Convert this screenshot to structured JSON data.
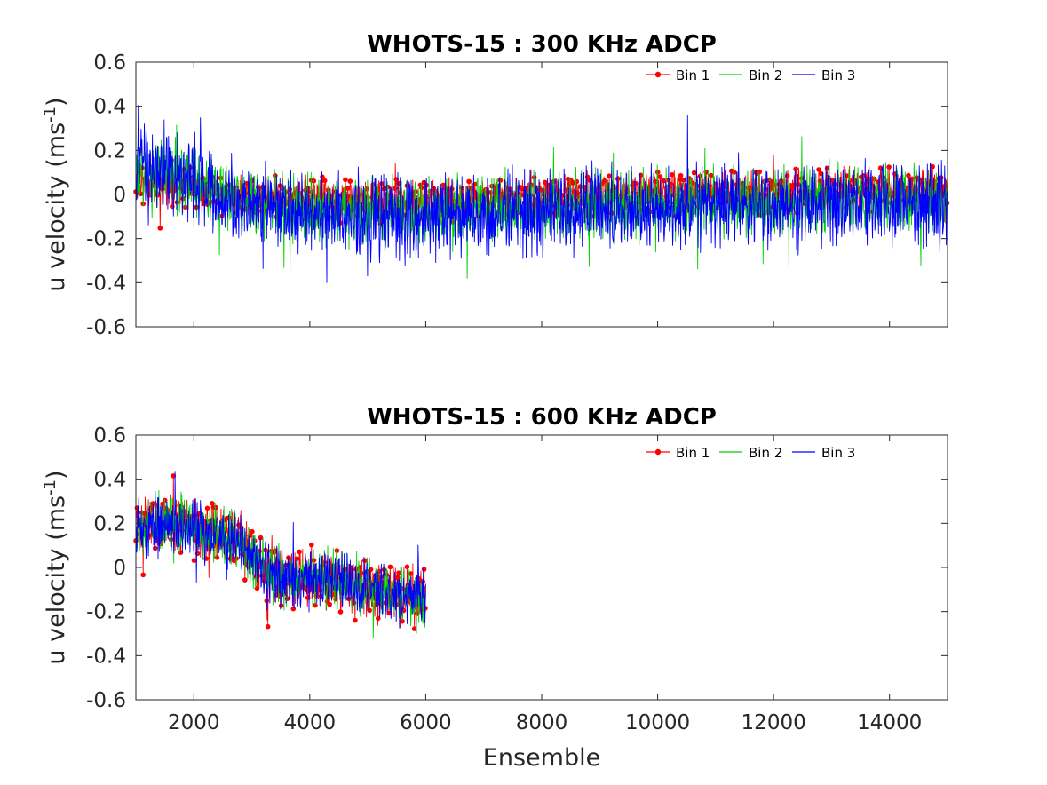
{
  "chart_data": [
    {
      "type": "line",
      "title": "WHOTS-15 : 300 KHz ADCP",
      "xlabel": "",
      "ylabel": "u velocity (ms",
      "ylabel_superscript": "-1",
      "ylabel_suffix": ")",
      "xlim": [
        1000,
        15000
      ],
      "ylim": [
        -0.6,
        0.6
      ],
      "xticks": [
        2000,
        4000,
        6000,
        8000,
        10000,
        12000,
        14000
      ],
      "xtick_labels_visible": false,
      "yticks": [
        -0.6,
        -0.4,
        -0.2,
        0,
        0.2,
        0.4,
        0.6
      ],
      "ytick_labels": [
        "-0.6",
        "-0.4",
        "-0.2",
        "0",
        "0.2",
        "0.4",
        "0.6"
      ],
      "legend": {
        "position": "top-right",
        "entries": [
          "Bin 1",
          "Bin 2",
          "Bin 3"
        ]
      },
      "series": [
        {
          "name": "Bin 1",
          "color": "#ff0000",
          "marker": "dot",
          "x": [
            1000,
            1500,
            2000,
            2500,
            3000,
            4000,
            5000,
            6000,
            7000,
            8000,
            9000,
            10000,
            11000,
            12000,
            13000,
            14000,
            15000
          ],
          "mean": [
            0.05,
            0.05,
            0.02,
            0.0,
            -0.02,
            -0.02,
            -0.03,
            -0.03,
            -0.02,
            -0.02,
            0.0,
            0.0,
            0.01,
            0.01,
            0.02,
            0.02,
            0.02
          ],
          "amplitude": 0.09
        },
        {
          "name": "Bin 2",
          "color": "#00d000",
          "marker": "none",
          "x": [
            1000,
            1500,
            2000,
            2500,
            3000,
            4000,
            5000,
            6000,
            7000,
            8000,
            9000,
            10000,
            11000,
            12000,
            13000,
            14000,
            15000
          ],
          "mean": [
            0.1,
            0.1,
            0.06,
            0.0,
            -0.04,
            -0.06,
            -0.08,
            -0.08,
            -0.06,
            -0.06,
            -0.04,
            -0.04,
            -0.03,
            -0.03,
            -0.02,
            -0.02,
            -0.03
          ],
          "amplitude": 0.14
        },
        {
          "name": "Bin 3",
          "color": "#0000ff",
          "marker": "none",
          "x": [
            1000,
            1500,
            2000,
            2500,
            3000,
            4000,
            5000,
            6000,
            7000,
            8000,
            9000,
            10000,
            11000,
            12000,
            13000,
            14000,
            15000
          ],
          "mean": [
            0.12,
            0.13,
            0.08,
            0.0,
            -0.05,
            -0.08,
            -0.1,
            -0.1,
            -0.08,
            -0.08,
            -0.06,
            -0.06,
            -0.05,
            -0.05,
            -0.04,
            -0.04,
            -0.05
          ],
          "amplitude": 0.17
        }
      ]
    },
    {
      "type": "line",
      "title": "WHOTS-15 : 600 KHz ADCP",
      "xlabel": "Ensemble",
      "ylabel": "u velocity (ms",
      "ylabel_superscript": "-1",
      "ylabel_suffix": ")",
      "xlim": [
        1000,
        15000
      ],
      "ylim": [
        -0.6,
        0.6
      ],
      "xticks": [
        2000,
        4000,
        6000,
        8000,
        10000,
        12000,
        14000
      ],
      "xtick_labels": [
        "2000",
        "4000",
        "6000",
        "8000",
        "10000",
        "12000",
        "14000"
      ],
      "xtick_labels_visible": true,
      "yticks": [
        -0.6,
        -0.4,
        -0.2,
        0,
        0.2,
        0.4,
        0.6
      ],
      "ytick_labels": [
        "-0.6",
        "-0.4",
        "-0.2",
        "0",
        "0.2",
        "0.4",
        "0.6"
      ],
      "legend": {
        "position": "top-right",
        "entries": [
          "Bin 1",
          "Bin 2",
          "Bin 3"
        ]
      },
      "series": [
        {
          "name": "Bin 1",
          "color": "#ff0000",
          "marker": "dot",
          "x": [
            1000,
            1500,
            2000,
            2500,
            2800,
            3000,
            3500,
            4000,
            4500,
            5000,
            5500,
            6000
          ],
          "mean": [
            0.17,
            0.2,
            0.18,
            0.15,
            0.12,
            0.05,
            -0.05,
            -0.05,
            -0.06,
            -0.1,
            -0.12,
            -0.15
          ],
          "amplitude": 0.12
        },
        {
          "name": "Bin 2",
          "color": "#00d000",
          "marker": "none",
          "x": [
            1000,
            1500,
            2000,
            2500,
            2800,
            3000,
            3500,
            4000,
            4500,
            5000,
            5500,
            6000
          ],
          "mean": [
            0.17,
            0.2,
            0.18,
            0.15,
            0.12,
            0.05,
            -0.05,
            -0.05,
            -0.06,
            -0.1,
            -0.12,
            -0.15
          ],
          "amplitude": 0.12
        },
        {
          "name": "Bin 3",
          "color": "#0000ff",
          "marker": "none",
          "x": [
            1000,
            1500,
            2000,
            2500,
            2800,
            3000,
            3500,
            4000,
            4500,
            5000,
            5500,
            6000
          ],
          "mean": [
            0.17,
            0.2,
            0.18,
            0.15,
            0.12,
            0.05,
            -0.05,
            -0.05,
            -0.06,
            -0.1,
            -0.12,
            -0.15
          ],
          "amplitude": 0.12
        }
      ]
    }
  ]
}
